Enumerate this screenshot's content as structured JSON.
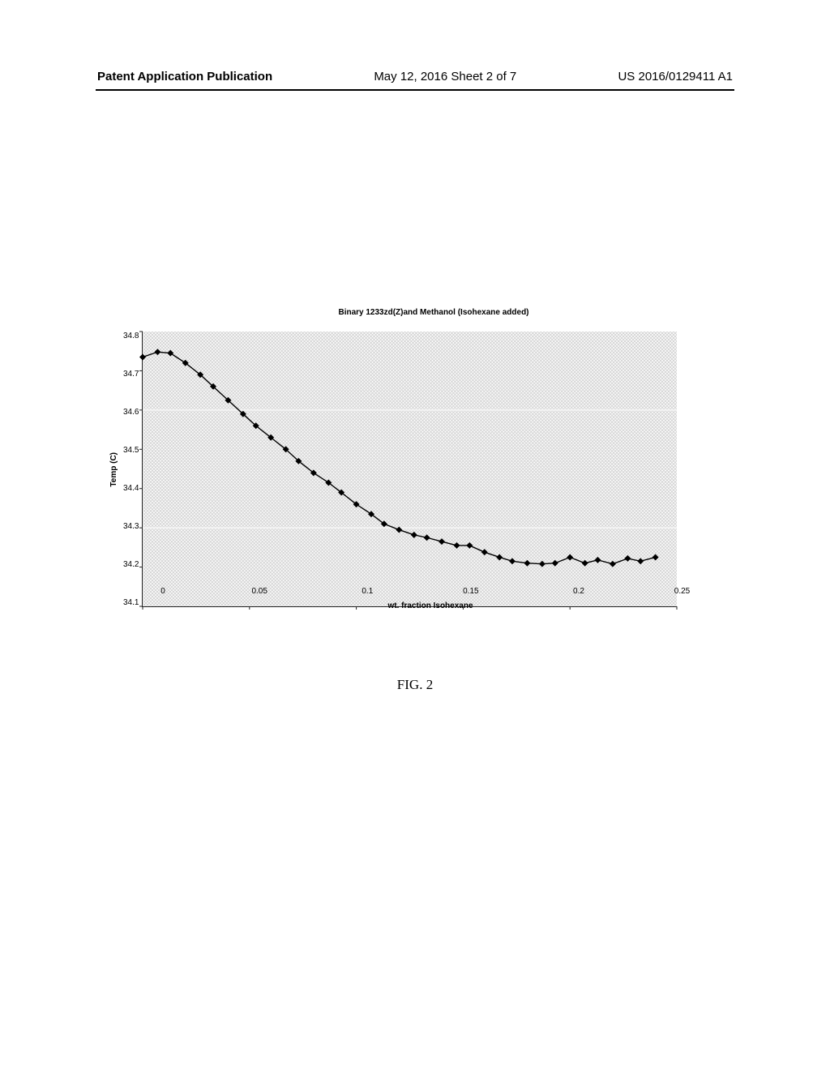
{
  "header": {
    "left": "Patent Application Publication",
    "center": "May 12, 2016  Sheet 2 of 7",
    "right": "US 2016/0129411 A1"
  },
  "figure_caption": "FIG. 2",
  "chart": {
    "type": "line",
    "title": "Binary 1233zd(Z)and Methanol (Isohexane added)",
    "xlabel": "wt. fraction Isohexane",
    "ylabel": "Temp (C)",
    "xlim": [
      0,
      0.25
    ],
    "ylim": [
      34.1,
      34.8
    ],
    "xticks": [
      0,
      0.05,
      0.1,
      0.15,
      0.2,
      0.25
    ],
    "yticks": [
      34.8,
      34.7,
      34.6,
      34.5,
      34.4,
      34.3,
      34.2,
      34.1
    ],
    "plot_bg_pattern": "crosshatch",
    "plot_bg_color": "#d0d0d0",
    "gridline_color": "#f2f2f2",
    "gridline_y_values": [
      34.3,
      34.6
    ],
    "line_color": "#000000",
    "line_width": 1.4,
    "marker": "diamond",
    "marker_size": 4,
    "marker_color": "#000000",
    "axis_color": "#202020",
    "tick_fontsize": 10,
    "label_fontsize": 10,
    "label_fontweight": "bold",
    "title_fontsize": 10,
    "title_fontweight": "bold",
    "points": [
      {
        "x": 0.0,
        "y": 34.735
      },
      {
        "x": 0.007,
        "y": 34.748
      },
      {
        "x": 0.013,
        "y": 34.745
      },
      {
        "x": 0.02,
        "y": 34.72
      },
      {
        "x": 0.027,
        "y": 34.69
      },
      {
        "x": 0.033,
        "y": 34.66
      },
      {
        "x": 0.04,
        "y": 34.625
      },
      {
        "x": 0.047,
        "y": 34.59
      },
      {
        "x": 0.053,
        "y": 34.56
      },
      {
        "x": 0.06,
        "y": 34.53
      },
      {
        "x": 0.067,
        "y": 34.5
      },
      {
        "x": 0.073,
        "y": 34.47
      },
      {
        "x": 0.08,
        "y": 34.44
      },
      {
        "x": 0.087,
        "y": 34.415
      },
      {
        "x": 0.093,
        "y": 34.39
      },
      {
        "x": 0.1,
        "y": 34.36
      },
      {
        "x": 0.107,
        "y": 34.335
      },
      {
        "x": 0.113,
        "y": 34.31
      },
      {
        "x": 0.12,
        "y": 34.295
      },
      {
        "x": 0.127,
        "y": 34.282
      },
      {
        "x": 0.133,
        "y": 34.275
      },
      {
        "x": 0.14,
        "y": 34.265
      },
      {
        "x": 0.147,
        "y": 34.255
      },
      {
        "x": 0.153,
        "y": 34.255
      },
      {
        "x": 0.16,
        "y": 34.238
      },
      {
        "x": 0.167,
        "y": 34.225
      },
      {
        "x": 0.173,
        "y": 34.215
      },
      {
        "x": 0.18,
        "y": 34.21
      },
      {
        "x": 0.187,
        "y": 34.208
      },
      {
        "x": 0.193,
        "y": 34.21
      },
      {
        "x": 0.2,
        "y": 34.225
      },
      {
        "x": 0.207,
        "y": 34.21
      },
      {
        "x": 0.213,
        "y": 34.218
      },
      {
        "x": 0.22,
        "y": 34.208
      },
      {
        "x": 0.227,
        "y": 34.222
      },
      {
        "x": 0.233,
        "y": 34.215
      },
      {
        "x": 0.24,
        "y": 34.225
      }
    ]
  }
}
